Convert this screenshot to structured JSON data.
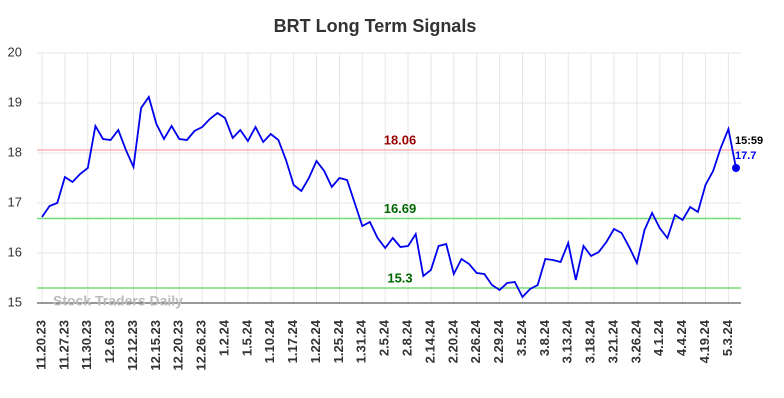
{
  "chart_data": {
    "type": "line",
    "title": "BRT Long Term Signals",
    "categories": [
      "11.20.23",
      null,
      null,
      "11.27.23",
      null,
      null,
      "11.30.23",
      null,
      null,
      "12.6.23",
      null,
      null,
      "12.12.23",
      null,
      null,
      "12.15.23",
      null,
      null,
      "12.20.23",
      null,
      null,
      "12.26.23",
      null,
      null,
      "1.2.24",
      null,
      null,
      "1.5.24",
      null,
      null,
      "1.10.24",
      null,
      null,
      "1.17.24",
      null,
      null,
      "1.22.24",
      null,
      null,
      "1.25.24",
      null,
      null,
      "1.31.24",
      null,
      null,
      "2.5.24",
      null,
      null,
      "2.8.24",
      null,
      null,
      "2.14.24",
      null,
      null,
      "2.20.24",
      null,
      null,
      "2.26.24",
      null,
      null,
      "2.29.24",
      null,
      null,
      "3.5.24",
      null,
      null,
      "3.8.24",
      null,
      null,
      "3.13.24",
      null,
      null,
      "3.18.24",
      null,
      null,
      "3.21.24",
      null,
      null,
      "3.26.24",
      null,
      null,
      "4.1.24",
      null,
      null,
      "4.4.24",
      null,
      null,
      "4.19.24",
      null,
      null,
      "5.3.24",
      null
    ],
    "values": [
      16.72,
      16.94,
      17.0,
      17.52,
      17.42,
      17.58,
      17.7,
      18.54,
      18.28,
      18.26,
      18.46,
      18.06,
      17.72,
      18.9,
      19.12,
      18.58,
      18.28,
      18.54,
      18.28,
      18.26,
      18.44,
      18.52,
      18.68,
      18.8,
      18.7,
      18.3,
      18.46,
      18.24,
      18.52,
      18.22,
      18.38,
      18.26,
      17.86,
      17.36,
      17.24,
      17.5,
      17.84,
      17.64,
      17.32,
      17.5,
      17.46,
      17.0,
      16.54,
      16.62,
      16.3,
      16.1,
      16.3,
      16.12,
      16.14,
      16.38,
      15.54,
      15.66,
      16.14,
      16.18,
      15.58,
      15.88,
      15.78,
      15.6,
      15.58,
      15.36,
      15.26,
      15.4,
      15.42,
      15.12,
      15.28,
      15.36,
      15.88,
      15.86,
      15.82,
      16.2,
      15.46,
      16.14,
      15.94,
      16.02,
      16.22,
      16.48,
      16.4,
      16.12,
      15.8,
      16.46,
      16.8,
      16.5,
      16.3,
      16.76,
      16.66,
      16.92,
      16.82,
      17.36,
      17.64,
      18.1,
      18.48,
      17.7
    ],
    "color": "#0000ee",
    "ylim": [
      15,
      20
    ],
    "yticks": [
      15,
      16,
      17,
      18,
      19,
      20
    ],
    "grid": true,
    "hlines": [
      {
        "value": 18.06,
        "color": "#ffb3b3",
        "label_color": "#990000"
      },
      {
        "value": 16.69,
        "color": "#77dd77",
        "label_color": "#006600"
      },
      {
        "value": 15.3,
        "color": "#77dd77",
        "label_color": "#006600"
      }
    ],
    "last_time": "15:59",
    "watermark": "Stock Traders Daily"
  }
}
